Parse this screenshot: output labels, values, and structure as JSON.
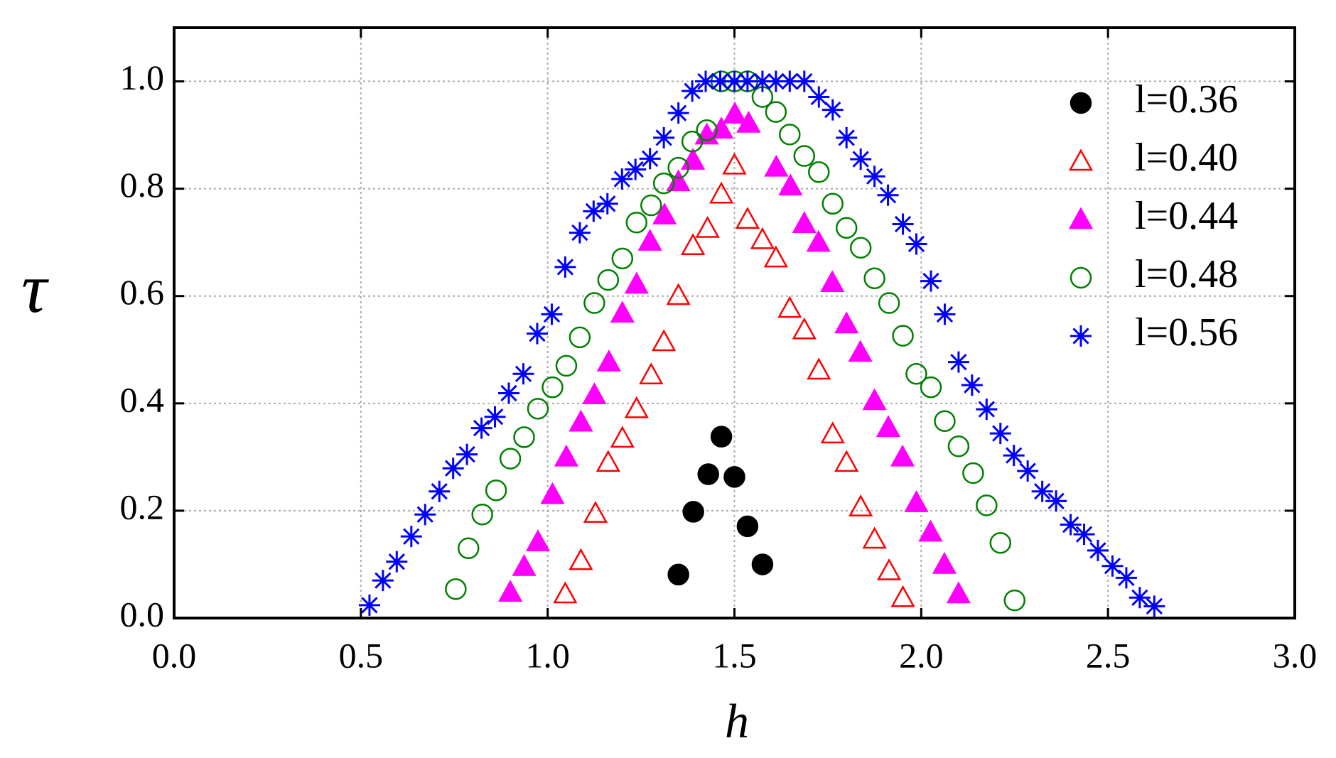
{
  "chart_data": {
    "type": "scatter",
    "x_label": "h",
    "y_label": "τ",
    "xlim": [
      0,
      3.0
    ],
    "ylim": [
      0,
      1.1
    ],
    "xticks": [
      {
        "value": 0,
        "label": "0.0"
      },
      0.5,
      {
        "value": 1,
        "label": "1.0"
      },
      1.5,
      {
        "value": 2,
        "label": "2.0"
      },
      2.5,
      {
        "value": 3,
        "label": "3.0"
      }
    ],
    "yticks": [
      {
        "value": 0,
        "label": "0.0"
      },
      0.2,
      0.4,
      0.6,
      0.8,
      {
        "value": 1,
        "label": "1.0"
      }
    ],
    "grid": true,
    "legend_position": "upper right",
    "series": [
      {
        "name": "l=0.36",
        "color": "#000000",
        "marker": "filled-circle",
        "x": [
          1.35,
          1.39,
          1.43,
          1.465,
          1.5,
          1.535,
          1.575
        ],
        "values": [
          0.081,
          0.198,
          0.268,
          0.338,
          0.263,
          0.171,
          0.1
        ]
      },
      {
        "name": "l=0.40",
        "color": "#ff0000",
        "marker": "open-triangle",
        "x": [
          1.047,
          1.089,
          1.128,
          1.162,
          1.2,
          1.238,
          1.277,
          1.311,
          1.35,
          1.389,
          1.428,
          1.465,
          1.5,
          1.535,
          1.575,
          1.611,
          1.648,
          1.687,
          1.726,
          1.763,
          1.8,
          1.838,
          1.875,
          1.914,
          1.951
        ],
        "values": [
          0.045,
          0.107,
          0.195,
          0.29,
          0.335,
          0.39,
          0.453,
          0.515,
          0.601,
          0.694,
          0.726,
          0.79,
          0.844,
          0.743,
          0.705,
          0.671,
          0.577,
          0.537,
          0.462,
          0.343,
          0.29,
          0.207,
          0.147,
          0.088,
          0.038
        ]
      },
      {
        "name": "l=0.44",
        "color": "#ff00ff",
        "marker": "filled-triangle",
        "x": [
          0.9,
          0.937,
          0.974,
          1.013,
          1.05,
          1.089,
          1.125,
          1.164,
          1.2,
          1.238,
          1.274,
          1.313,
          1.35,
          1.389,
          1.426,
          1.465,
          1.501,
          1.538,
          1.612,
          1.65,
          1.687,
          1.725,
          1.762,
          1.8,
          1.837,
          1.875,
          1.912,
          1.95,
          1.987,
          2.025,
          2.062,
          2.1
        ],
        "values": [
          0.048,
          0.096,
          0.142,
          0.23,
          0.3,
          0.365,
          0.416,
          0.477,
          0.568,
          0.622,
          0.702,
          0.751,
          0.813,
          0.853,
          0.9,
          0.911,
          0.939,
          0.922,
          0.84,
          0.805,
          0.735,
          0.7,
          0.625,
          0.548,
          0.495,
          0.405,
          0.355,
          0.3,
          0.215,
          0.16,
          0.1,
          0.045
        ]
      },
      {
        "name": "l=0.48",
        "color": "#008000",
        "marker": "open-circle",
        "x": [
          0.754,
          0.788,
          0.825,
          0.862,
          0.9,
          0.937,
          0.974,
          1.013,
          1.05,
          1.086,
          1.125,
          1.162,
          1.2,
          1.238,
          1.277,
          1.311,
          1.35,
          1.387,
          1.426,
          1.465,
          1.5,
          1.535,
          1.575,
          1.611,
          1.648,
          1.687,
          1.726,
          1.763,
          1.8,
          1.838,
          1.875,
          1.914,
          1.951,
          1.987,
          2.026,
          2.063,
          2.1,
          2.139,
          2.175,
          2.212,
          2.25
        ],
        "values": [
          0.054,
          0.13,
          0.193,
          0.238,
          0.297,
          0.337,
          0.39,
          0.43,
          0.47,
          0.523,
          0.587,
          0.63,
          0.67,
          0.737,
          0.769,
          0.81,
          0.839,
          0.888,
          0.909,
          1.0,
          1.0,
          1.0,
          0.971,
          0.943,
          0.901,
          0.861,
          0.831,
          0.772,
          0.727,
          0.69,
          0.633,
          0.587,
          0.526,
          0.455,
          0.43,
          0.367,
          0.32,
          0.27,
          0.21,
          0.14,
          0.033
        ]
      },
      {
        "name": "l=0.56",
        "color": "#0000ff",
        "marker": "star",
        "x": [
          0.523,
          0.559,
          0.596,
          0.635,
          0.672,
          0.71,
          0.747,
          0.784,
          0.823,
          0.859,
          0.896,
          0.935,
          0.972,
          1.011,
          1.047,
          1.086,
          1.123,
          1.16,
          1.199,
          1.235,
          1.274,
          1.311,
          1.35,
          1.387,
          1.423,
          1.462,
          1.5,
          1.535,
          1.575,
          1.611,
          1.648,
          1.687,
          1.726,
          1.763,
          1.8,
          1.838,
          1.875,
          1.911,
          1.951,
          1.987,
          2.026,
          2.063,
          2.1,
          2.136,
          2.175,
          2.212,
          2.248,
          2.285,
          2.324,
          2.361,
          2.4,
          2.436,
          2.473,
          2.512,
          2.549,
          2.585,
          2.624
        ],
        "values": [
          0.024,
          0.07,
          0.105,
          0.152,
          0.193,
          0.236,
          0.279,
          0.305,
          0.354,
          0.375,
          0.419,
          0.455,
          0.53,
          0.566,
          0.654,
          0.718,
          0.758,
          0.772,
          0.818,
          0.836,
          0.856,
          0.895,
          0.941,
          0.982,
          1.0,
          1.0,
          1.0,
          1.0,
          1.0,
          1.0,
          1.0,
          1.0,
          0.971,
          0.947,
          0.895,
          0.855,
          0.823,
          0.788,
          0.734,
          0.697,
          0.628,
          0.566,
          0.477,
          0.434,
          0.389,
          0.344,
          0.303,
          0.274,
          0.236,
          0.218,
          0.174,
          0.156,
          0.126,
          0.097,
          0.075,
          0.038,
          0.022
        ]
      }
    ]
  }
}
